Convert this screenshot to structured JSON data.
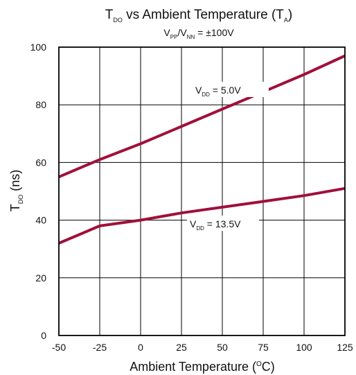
{
  "chart_data": {
    "type": "line",
    "title": {
      "main": "T",
      "main_sub": "DO",
      "rest": " vs Ambient Temperature (T",
      "rest_sub": "A",
      "end": ")"
    },
    "subtitle": {
      "v1": "V",
      "v1_sub": "PP",
      "slash": "/V",
      "v2_sub": "NN",
      "rest": " = ±100V"
    },
    "xlabel": {
      "text": "Ambient Temperature (",
      "sup": "O",
      "end": "C)"
    },
    "ylabel": {
      "main": "T",
      "sub": "DO",
      "rest": " (ns)"
    },
    "x_ticks": [
      -50,
      -25,
      0,
      25,
      50,
      75,
      100,
      125
    ],
    "y_ticks": [
      0,
      20,
      40,
      60,
      80,
      100
    ],
    "xlim": [
      -50,
      125
    ],
    "ylim": [
      0,
      100
    ],
    "grid": true,
    "line_color": "#a0103a",
    "series": [
      {
        "label": {
          "main": "V",
          "sub": "DD",
          "rest": " = 5.0V"
        },
        "x": [
          -50,
          -25,
          0,
          25,
          50,
          75,
          100,
          125
        ],
        "y": [
          55,
          61,
          66.5,
          72.5,
          78.5,
          84.5,
          90.5,
          97
        ]
      },
      {
        "label": {
          "main": "V",
          "sub": "DD",
          "rest": " = 13.5V"
        },
        "x": [
          -50,
          -25,
          0,
          25,
          50,
          75,
          100,
          125
        ],
        "y": [
          32,
          38,
          40,
          42.5,
          44.5,
          46.5,
          48.5,
          51
        ]
      }
    ]
  }
}
